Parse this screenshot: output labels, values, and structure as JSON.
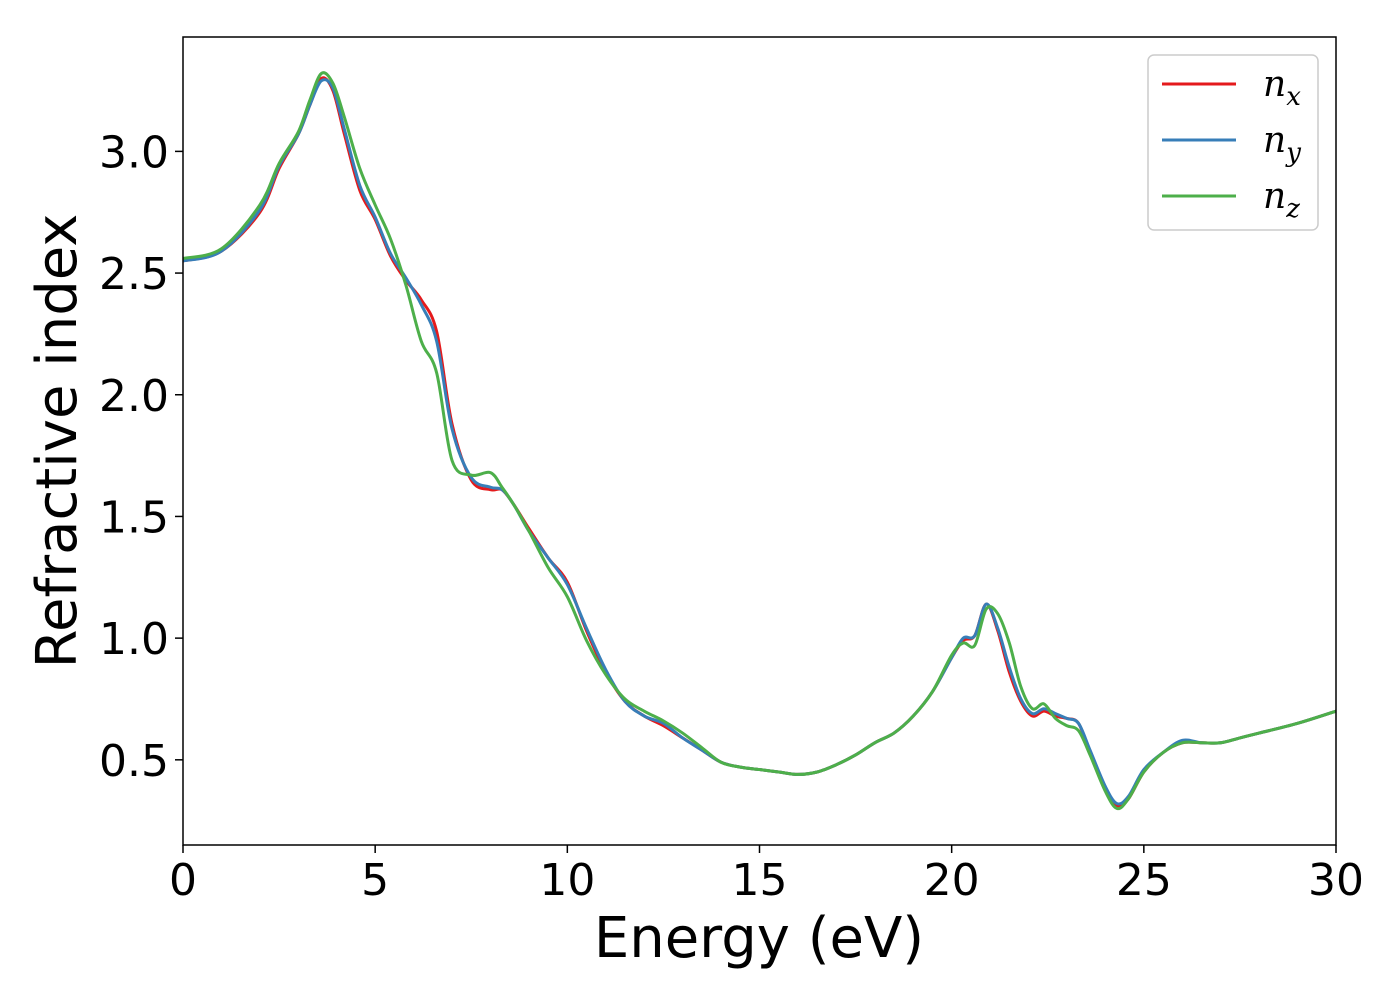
{
  "chart_data": {
    "type": "line",
    "xlabel": "Energy (eV)",
    "ylabel": "Refractive index",
    "xlim": [
      0,
      30
    ],
    "ylim": [
      0.15,
      3.47
    ],
    "xticks": [
      0,
      5,
      10,
      15,
      20,
      25,
      30
    ],
    "xtick_labels": [
      "0",
      "5",
      "10",
      "15",
      "20",
      "25",
      "30"
    ],
    "yticks": [
      0.5,
      1.0,
      1.5,
      2.0,
      2.5,
      3.0
    ],
    "ytick_labels": [
      "0.5",
      "1.0",
      "1.5",
      "2.0",
      "2.5",
      "3.0"
    ],
    "grid": false,
    "legend_position": "top-right",
    "series": [
      {
        "name": "n_x",
        "label_base": "n",
        "label_sub": "x",
        "color": "#e41a1c",
        "x": [
          0,
          1,
          2,
          2.5,
          3,
          3.3,
          3.6,
          3.9,
          4.2,
          4.6,
          5,
          5.4,
          5.8,
          6.2,
          6.6,
          7,
          7.5,
          8,
          8.3,
          8.6,
          9,
          9.5,
          10,
          10.5,
          11,
          11.5,
          12,
          12.5,
          13,
          13.5,
          14,
          14.5,
          15,
          15.5,
          16,
          16.5,
          17,
          17.5,
          18,
          18.5,
          19,
          19.5,
          20,
          20.3,
          20.6,
          20.9,
          21.2,
          21.5,
          21.8,
          22.1,
          22.4,
          22.7,
          23,
          23.3,
          23.6,
          24,
          24.3,
          24.6,
          25,
          25.5,
          26,
          26.5,
          27,
          27.5,
          28,
          29,
          30
        ],
        "y": [
          2.55,
          2.59,
          2.75,
          2.93,
          3.07,
          3.19,
          3.3,
          3.25,
          3.07,
          2.84,
          2.72,
          2.57,
          2.47,
          2.39,
          2.26,
          1.88,
          1.65,
          1.61,
          1.61,
          1.55,
          1.45,
          1.33,
          1.23,
          1.03,
          0.86,
          0.74,
          0.68,
          0.64,
          0.59,
          0.54,
          0.49,
          0.47,
          0.46,
          0.45,
          0.44,
          0.45,
          0.48,
          0.52,
          0.57,
          0.61,
          0.68,
          0.78,
          0.92,
          0.99,
          1.01,
          1.14,
          1.03,
          0.86,
          0.74,
          0.68,
          0.7,
          0.68,
          0.67,
          0.65,
          0.53,
          0.38,
          0.31,
          0.34,
          0.45,
          0.53,
          0.57,
          0.57,
          0.57,
          0.59,
          0.61,
          0.65,
          0.7
        ]
      },
      {
        "name": "n_y",
        "label_base": "n",
        "label_sub": "y",
        "color": "#377eb8",
        "x": [
          0,
          1,
          2,
          2.5,
          3,
          3.3,
          3.6,
          3.9,
          4.2,
          4.6,
          5,
          5.4,
          5.8,
          6.2,
          6.6,
          7,
          7.5,
          8,
          8.3,
          8.6,
          9,
          9.5,
          10,
          10.5,
          11,
          11.5,
          12,
          12.5,
          13,
          13.5,
          14,
          14.5,
          15,
          15.5,
          16,
          16.5,
          17,
          17.5,
          18,
          18.5,
          19,
          19.5,
          20,
          20.3,
          20.6,
          20.9,
          21.2,
          21.5,
          21.8,
          22.1,
          22.4,
          22.7,
          23,
          23.3,
          23.6,
          24,
          24.3,
          24.6,
          25,
          25.5,
          26,
          26.5,
          27,
          27.5,
          28,
          29,
          30
        ],
        "y": [
          2.55,
          2.59,
          2.76,
          2.94,
          3.07,
          3.19,
          3.29,
          3.26,
          3.09,
          2.86,
          2.73,
          2.58,
          2.48,
          2.37,
          2.22,
          1.86,
          1.66,
          1.62,
          1.61,
          1.55,
          1.44,
          1.33,
          1.22,
          1.04,
          0.87,
          0.74,
          0.68,
          0.65,
          0.59,
          0.54,
          0.49,
          0.47,
          0.46,
          0.45,
          0.44,
          0.45,
          0.48,
          0.52,
          0.57,
          0.61,
          0.68,
          0.78,
          0.92,
          1.0,
          1.01,
          1.14,
          1.04,
          0.88,
          0.75,
          0.69,
          0.71,
          0.69,
          0.67,
          0.65,
          0.54,
          0.39,
          0.32,
          0.35,
          0.46,
          0.53,
          0.58,
          0.57,
          0.57,
          0.59,
          0.61,
          0.65,
          0.7
        ]
      },
      {
        "name": "n_z",
        "label_base": "n",
        "label_sub": "z",
        "color": "#4daf4a",
        "x": [
          0,
          1,
          2,
          2.5,
          3,
          3.3,
          3.6,
          3.9,
          4.2,
          4.6,
          5,
          5.4,
          5.8,
          6.2,
          6.6,
          7,
          7.5,
          8,
          8.3,
          8.6,
          9,
          9.5,
          10,
          10.5,
          11,
          11.5,
          12,
          12.5,
          13,
          13.5,
          14,
          14.5,
          15,
          15.5,
          16,
          16.5,
          17,
          17.5,
          18,
          18.5,
          19,
          19.5,
          20,
          20.3,
          20.6,
          20.9,
          21.2,
          21.5,
          21.8,
          22.1,
          22.4,
          22.7,
          23,
          23.3,
          23.6,
          24,
          24.3,
          24.6,
          25,
          25.5,
          26,
          26.5,
          27,
          27.5,
          28,
          29,
          30
        ],
        "y": [
          2.56,
          2.6,
          2.78,
          2.95,
          3.08,
          3.21,
          3.32,
          3.28,
          3.14,
          2.93,
          2.78,
          2.64,
          2.45,
          2.22,
          2.09,
          1.73,
          1.67,
          1.68,
          1.62,
          1.55,
          1.44,
          1.29,
          1.17,
          0.99,
          0.85,
          0.75,
          0.7,
          0.66,
          0.61,
          0.55,
          0.49,
          0.47,
          0.46,
          0.45,
          0.44,
          0.45,
          0.48,
          0.52,
          0.57,
          0.61,
          0.68,
          0.78,
          0.93,
          0.98,
          0.97,
          1.12,
          1.1,
          0.98,
          0.8,
          0.71,
          0.73,
          0.67,
          0.64,
          0.62,
          0.52,
          0.37,
          0.3,
          0.34,
          0.45,
          0.53,
          0.57,
          0.57,
          0.57,
          0.59,
          0.61,
          0.65,
          0.7
        ]
      }
    ]
  }
}
